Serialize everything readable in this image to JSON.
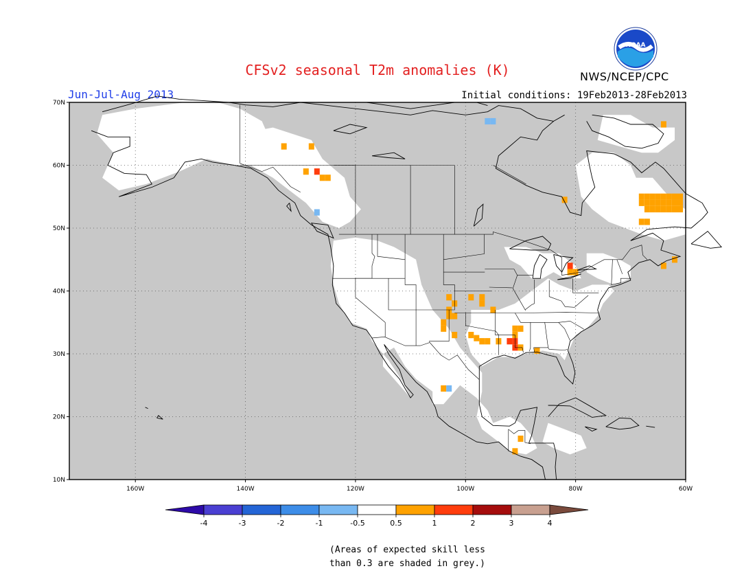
{
  "header": {
    "title": "CFSv2 seasonal T2m anomalies (K)",
    "period": "Jun-Jul-Aug 2013",
    "initial_conditions": "Initial conditions: 19Feb2013-28Feb2013",
    "agency": "NWS/NCEP/CPC",
    "logo_text": "NOAA"
  },
  "map": {
    "projection": "lat-lon",
    "lon_range": [
      -172,
      -60
    ],
    "lat_range": [
      10,
      70
    ],
    "grid": "dotted",
    "lon_labels": [
      "160W",
      "140W",
      "120W",
      "100W",
      "80W",
      "60W"
    ],
    "lat_labels": [
      "70N",
      "60N",
      "50N",
      "40N",
      "30N",
      "20N",
      "10N"
    ],
    "background_color": "#c8c8c8",
    "skill_color": "#ffffff"
  },
  "colorbar": {
    "labels": [
      "-4",
      "-3",
      "-2",
      "-1",
      "-0.5",
      "0.5",
      "1",
      "2",
      "3",
      "4"
    ],
    "colors": [
      "#2d0aa8",
      "#4a3fd2",
      "#2465d6",
      "#3d8de8",
      "#78b8f2",
      "#ffffff",
      "#ffa200",
      "#ff3d0d",
      "#a50d0d",
      "#c8a090",
      "#7a4a3c"
    ]
  },
  "anomaly_cells": [
    {
      "lon": -133,
      "lat": 63,
      "value": 0.7
    },
    {
      "lon": -128,
      "lat": 63,
      "value": 0.7
    },
    {
      "lon": -129,
      "lat": 59,
      "value": 0.7
    },
    {
      "lon": -127,
      "lat": 59,
      "value": 1.2
    },
    {
      "lon": -126,
      "lat": 58,
      "value": 0.7
    },
    {
      "lon": -125,
      "lat": 58,
      "value": 0.7
    },
    {
      "lon": -127,
      "lat": 52.5,
      "value": -0.7
    },
    {
      "lon": -104,
      "lat": 24.5,
      "value": 0.7
    },
    {
      "lon": -103,
      "lat": 24.5,
      "value": -0.7
    },
    {
      "lon": -103,
      "lat": 39,
      "value": 0.7
    },
    {
      "lon": -102,
      "lat": 38,
      "value": 0.7
    },
    {
      "lon": -103,
      "lat": 37,
      "value": 0.7
    },
    {
      "lon": -103,
      "lat": 36,
      "value": 0.7
    },
    {
      "lon": -102,
      "lat": 36,
      "value": 0.7
    },
    {
      "lon": -104,
      "lat": 35,
      "value": 0.7
    },
    {
      "lon": -104,
      "lat": 34,
      "value": 0.7
    },
    {
      "lon": -102,
      "lat": 33,
      "value": 0.7
    },
    {
      "lon": -99,
      "lat": 39,
      "value": 0.7
    },
    {
      "lon": -97,
      "lat": 39,
      "value": 0.7
    },
    {
      "lon": -97,
      "lat": 38,
      "value": 0.7
    },
    {
      "lon": -95,
      "lat": 37,
      "value": 0.7
    },
    {
      "lon": -99,
      "lat": 33,
      "value": 0.7
    },
    {
      "lon": -98,
      "lat": 32.5,
      "value": 0.7
    },
    {
      "lon": -97,
      "lat": 32,
      "value": 0.7
    },
    {
      "lon": -96,
      "lat": 32,
      "value": 0.7
    },
    {
      "lon": -94,
      "lat": 32,
      "value": 0.7
    },
    {
      "lon": -92,
      "lat": 32,
      "value": 1.2
    },
    {
      "lon": -91,
      "lat": 33,
      "value": 0.7
    },
    {
      "lon": -91,
      "lat": 34,
      "value": 0.7
    },
    {
      "lon": -90,
      "lat": 34,
      "value": 0.7
    },
    {
      "lon": -91,
      "lat": 32,
      "value": 1.2
    },
    {
      "lon": -91,
      "lat": 31,
      "value": 1.2
    },
    {
      "lon": -90,
      "lat": 31,
      "value": 0.7
    },
    {
      "lon": -87,
      "lat": 30.5,
      "value": 0.7
    },
    {
      "lon": -81,
      "lat": 44,
      "value": 1.2
    },
    {
      "lon": -81,
      "lat": 43,
      "value": 0.7
    },
    {
      "lon": -80,
      "lat": 43,
      "value": 0.7
    },
    {
      "lon": -82,
      "lat": 54.5,
      "value": 0.7
    },
    {
      "lon": -96,
      "lat": 67,
      "value": -0.7
    },
    {
      "lon": -95,
      "lat": 67,
      "value": -0.7
    },
    {
      "lon": -90,
      "lat": 16.5,
      "value": 0.7
    },
    {
      "lon": -91,
      "lat": 14.5,
      "value": 0.7
    },
    {
      "lon": -64,
      "lat": 66.5,
      "value": 0.7
    },
    {
      "lon": -64,
      "lat": 44,
      "value": 0.7
    },
    {
      "lon": -62,
      "lat": 45,
      "value": 0.7
    },
    {
      "lon": -68,
      "lat": 51,
      "value": 0.7
    },
    {
      "lon": -67,
      "lat": 51,
      "value": 0.7
    },
    {
      "lon": -68,
      "lat": 55,
      "value": 0.7
    },
    {
      "lon": -67,
      "lat": 55,
      "value": 0.7
    },
    {
      "lon": -66,
      "lat": 55,
      "value": 0.7
    },
    {
      "lon": -65,
      "lat": 55,
      "value": 0.7
    },
    {
      "lon": -64,
      "lat": 55,
      "value": 0.7
    },
    {
      "lon": -63,
      "lat": 55,
      "value": 0.7
    },
    {
      "lon": -62,
      "lat": 55,
      "value": 0.7
    },
    {
      "lon": -61,
      "lat": 55,
      "value": 0.7
    },
    {
      "lon": -68,
      "lat": 54,
      "value": 0.7
    },
    {
      "lon": -67,
      "lat": 54,
      "value": 0.7
    },
    {
      "lon": -66,
      "lat": 54,
      "value": 0.7
    },
    {
      "lon": -65,
      "lat": 54,
      "value": 0.7
    },
    {
      "lon": -64,
      "lat": 54,
      "value": 0.7
    },
    {
      "lon": -63,
      "lat": 54,
      "value": 0.7
    },
    {
      "lon": -62,
      "lat": 54,
      "value": 0.7
    },
    {
      "lon": -61,
      "lat": 54,
      "value": 0.7
    },
    {
      "lon": -67,
      "lat": 53,
      "value": 0.7
    },
    {
      "lon": -66,
      "lat": 53,
      "value": 0.7
    },
    {
      "lon": -65,
      "lat": 53,
      "value": 0.7
    },
    {
      "lon": -64,
      "lat": 53,
      "value": 0.7
    },
    {
      "lon": -63,
      "lat": 53,
      "value": 0.7
    },
    {
      "lon": -62,
      "lat": 53,
      "value": 0.7
    },
    {
      "lon": -61,
      "lat": 53,
      "value": 0.7
    }
  ],
  "footnote": {
    "line1": "(Areas of expected skill less",
    "line2": "than 0.3 are shaded in grey.)"
  }
}
